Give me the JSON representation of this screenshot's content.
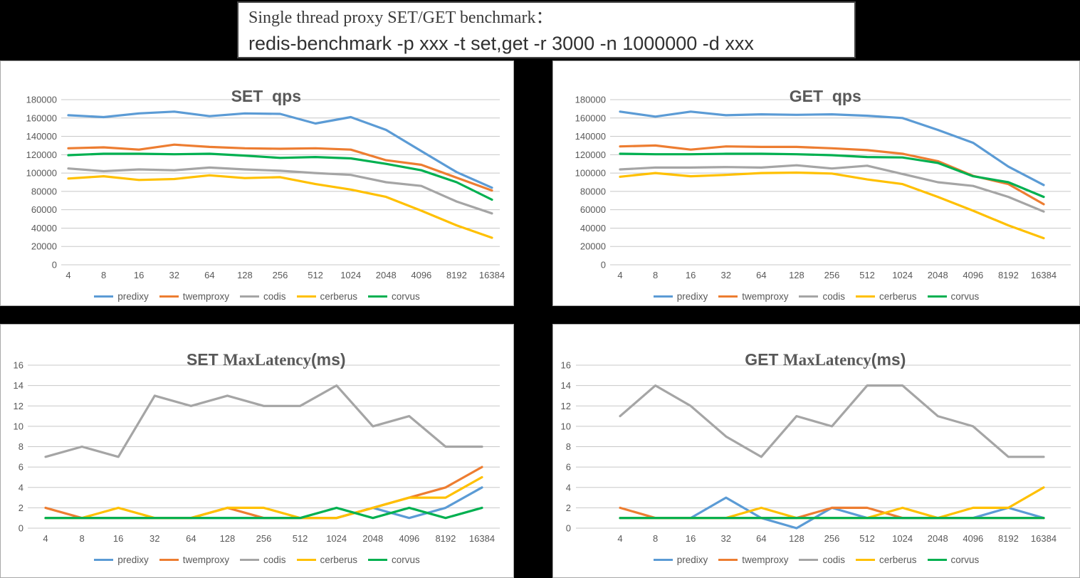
{
  "title_box": {
    "line1": "Single thread proxy SET/GET benchmark：",
    "line2": "redis-benchmark -p xxx -t set,get -r 3000 -n 1000000 -d xxx"
  },
  "legend": [
    "predixy",
    "twemproxy",
    "codis",
    "cerberus",
    "corvus"
  ],
  "colors": {
    "predixy": "#5B9BD5",
    "twemproxy": "#ED7D31",
    "codis": "#A5A5A5",
    "cerberus": "#FFC000",
    "corvus": "#00B050",
    "grid": "#C8C8C8",
    "axis_text": "#595959",
    "panel_background": "#FFFFFF",
    "page_background": "#000000"
  },
  "chart_data": [
    {
      "id": "set_qps",
      "type": "line",
      "title": "SET  qps",
      "title_parts": [
        "SET  qps"
      ],
      "categories": [
        "4",
        "8",
        "16",
        "32",
        "64",
        "128",
        "256",
        "512",
        "1024",
        "2048",
        "4096",
        "8192",
        "16384"
      ],
      "xlabel": "",
      "ylabel": "",
      "ylim": [
        0,
        180000
      ],
      "yticks": [
        "0",
        "20000",
        "40000",
        "60000",
        "80000",
        "100000",
        "120000",
        "140000",
        "160000",
        "180000"
      ],
      "grid": true,
      "legend_position": "bottom",
      "series": [
        {
          "name": "predixy",
          "values": [
            163000,
            161000,
            165000,
            167000,
            162000,
            165000,
            164500,
            154000,
            161000,
            147000,
            124000,
            101000,
            84000
          ]
        },
        {
          "name": "twemproxy",
          "values": [
            127000,
            128000,
            125500,
            131000,
            128500,
            127000,
            126500,
            127000,
            125500,
            114000,
            109000,
            95000,
            81000
          ]
        },
        {
          "name": "codis",
          "values": [
            105000,
            102000,
            104000,
            103000,
            106000,
            104000,
            102500,
            100000,
            98000,
            90000,
            86000,
            69000,
            56000
          ]
        },
        {
          "name": "cerberus",
          "values": [
            94000,
            96500,
            92500,
            93500,
            97500,
            94500,
            95500,
            88000,
            82000,
            74000,
            59000,
            43000,
            29500
          ]
        },
        {
          "name": "corvus",
          "values": [
            119500,
            121000,
            121000,
            120500,
            121000,
            119000,
            116500,
            117500,
            116000,
            110000,
            103000,
            90000,
            71000
          ]
        }
      ]
    },
    {
      "id": "get_qps",
      "type": "line",
      "title": "GET  qps",
      "title_parts": [
        "GET  qps"
      ],
      "categories": [
        "4",
        "8",
        "16",
        "32",
        "64",
        "128",
        "256",
        "512",
        "1024",
        "2048",
        "4096",
        "8192",
        "16384"
      ],
      "xlabel": "",
      "ylabel": "",
      "ylim": [
        0,
        180000
      ],
      "yticks": [
        "0",
        "20000",
        "40000",
        "60000",
        "80000",
        "100000",
        "120000",
        "140000",
        "160000",
        "180000"
      ],
      "grid": true,
      "legend_position": "bottom",
      "series": [
        {
          "name": "predixy",
          "values": [
            167000,
            161500,
            167000,
            163000,
            164000,
            163500,
            164000,
            162500,
            160000,
            147000,
            133000,
            107000,
            87000
          ]
        },
        {
          "name": "twemproxy",
          "values": [
            129000,
            130000,
            125500,
            129000,
            128500,
            128500,
            127000,
            125000,
            121000,
            113000,
            97000,
            88000,
            66000
          ]
        },
        {
          "name": "codis",
          "values": [
            104000,
            106000,
            106000,
            106500,
            106000,
            108500,
            105000,
            108000,
            99000,
            90000,
            86000,
            74000,
            58000
          ]
        },
        {
          "name": "cerberus",
          "values": [
            96000,
            100000,
            96500,
            98000,
            100000,
            100500,
            99500,
            93000,
            88000,
            74000,
            59000,
            43000,
            29000
          ]
        },
        {
          "name": "corvus",
          "values": [
            121000,
            120500,
            120500,
            121000,
            121000,
            120500,
            119500,
            117500,
            117000,
            111000,
            96500,
            90000,
            74000
          ]
        }
      ]
    },
    {
      "id": "set_latency",
      "type": "line",
      "title": "SET MaxLatency(ms)",
      "title_parts": [
        "SET ",
        "MaxLatency",
        "(ms)"
      ],
      "categories": [
        "4",
        "8",
        "16",
        "32",
        "64",
        "128",
        "256",
        "512",
        "1024",
        "2048",
        "4096",
        "8192",
        "16384"
      ],
      "xlabel": "",
      "ylabel": "",
      "ylim": [
        0,
        16
      ],
      "yticks": [
        "0",
        "2",
        "4",
        "6",
        "8",
        "10",
        "12",
        "14",
        "16"
      ],
      "grid": true,
      "legend_position": "bottom",
      "series": [
        {
          "name": "predixy",
          "values": [
            1,
            1,
            1,
            1,
            1,
            1,
            1,
            1,
            1,
            2,
            1,
            2,
            4
          ]
        },
        {
          "name": "twemproxy",
          "values": [
            2,
            1,
            1,
            1,
            1,
            2,
            1,
            1,
            1,
            2,
            3,
            4,
            6
          ]
        },
        {
          "name": "codis",
          "values": [
            7,
            8,
            7,
            13,
            12,
            13,
            12,
            12,
            14,
            10,
            11,
            8,
            8
          ]
        },
        {
          "name": "cerberus",
          "values": [
            1,
            1,
            2,
            1,
            1,
            2,
            2,
            1,
            1,
            2,
            3,
            3,
            5
          ]
        },
        {
          "name": "corvus",
          "values": [
            1,
            1,
            1,
            1,
            1,
            1,
            1,
            1,
            2,
            1,
            2,
            1,
            2
          ]
        }
      ]
    },
    {
      "id": "get_latency",
      "type": "line",
      "title": "GET MaxLatency(ms)",
      "title_parts": [
        "GET ",
        "MaxLatency",
        "(ms)"
      ],
      "categories": [
        "4",
        "8",
        "16",
        "32",
        "64",
        "128",
        "256",
        "512",
        "1024",
        "2048",
        "4096",
        "8192",
        "16384"
      ],
      "xlabel": "",
      "ylabel": "",
      "ylim": [
        0,
        16
      ],
      "yticks": [
        "0",
        "2",
        "4",
        "6",
        "8",
        "10",
        "12",
        "14",
        "16"
      ],
      "grid": true,
      "legend_position": "bottom",
      "series": [
        {
          "name": "predixy",
          "values": [
            1,
            1,
            1,
            3,
            1,
            0,
            2,
            1,
            1,
            1,
            1,
            2,
            1
          ]
        },
        {
          "name": "twemproxy",
          "values": [
            2,
            1,
            1,
            1,
            1,
            1,
            2,
            2,
            1,
            1,
            1,
            1,
            1
          ]
        },
        {
          "name": "codis",
          "values": [
            11,
            14,
            12,
            9,
            7,
            11,
            10,
            14,
            14,
            11,
            10,
            7,
            7
          ]
        },
        {
          "name": "cerberus",
          "values": [
            1,
            1,
            1,
            1,
            2,
            1,
            1,
            1,
            2,
            1,
            2,
            2,
            4
          ]
        },
        {
          "name": "corvus",
          "values": [
            1,
            1,
            1,
            1,
            1,
            1,
            1,
            1,
            1,
            1,
            1,
            1,
            1
          ]
        }
      ]
    }
  ]
}
